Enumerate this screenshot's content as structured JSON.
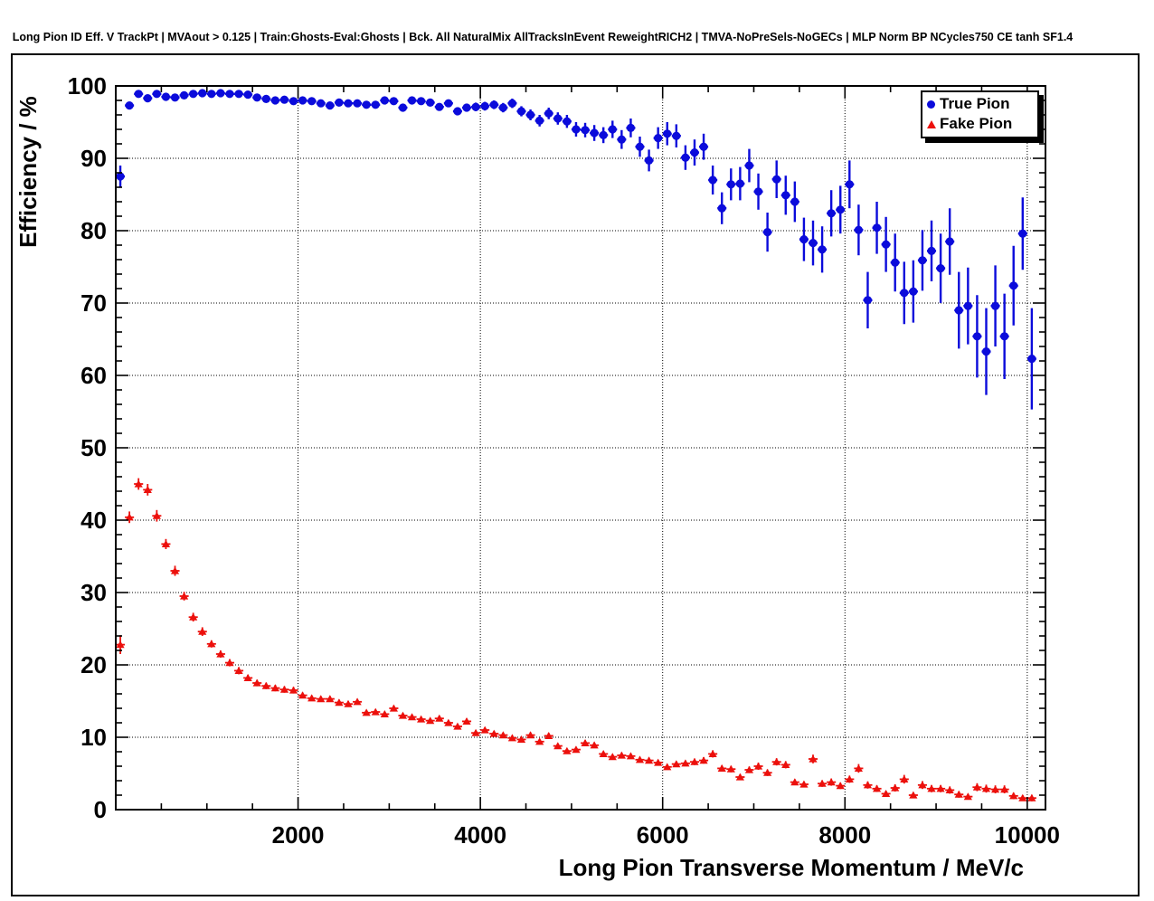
{
  "page_title": "Long Pion ID Eff. V TrackPt | MVAout > 0.125 | Train:Ghosts-Eval:Ghosts | Bck. All NaturalMix AllTracksInEvent ReweightRICH2 | TMVA-NoPreSels-NoGECs | MLP Norm BP NCycles750 CE tanh SF1.4",
  "colors": {
    "true_pion": "#0b0bdb",
    "fake_pion": "#ec100c",
    "axis": "#000000",
    "background": "#ffffff"
  },
  "legend": {
    "position": "top-right",
    "entries": [
      {
        "label": "True Pion",
        "marker": "circle",
        "color": "#0b0bdb"
      },
      {
        "label": "Fake Pion",
        "marker": "triangle",
        "color": "#ec100c"
      }
    ]
  },
  "chart_data": {
    "type": "scatter",
    "title": "Long Pion ID Eff. V TrackPt | MVAout > 0.125 | Train:Ghosts-Eval:Ghosts | Bck. All NaturalMix AllTracksInEvent ReweightRICH2 | TMVA-NoPreSels-NoGECs | MLP Norm BP NCycles750 CE tanh SF1.4",
    "xlabel": "Long Pion Transverse Momentum / MeV/c",
    "ylabel": "Efficiency / %",
    "xlim": [
      0,
      10200
    ],
    "ylim": [
      0,
      100
    ],
    "x_major_ticks": [
      2000,
      4000,
      6000,
      8000,
      10000
    ],
    "x_minor_step": 500,
    "y_major_ticks": [
      0,
      10,
      20,
      30,
      40,
      50,
      60,
      70,
      80,
      90,
      100
    ],
    "y_minor_step": 2,
    "grid": true,
    "bin_half_width": 50,
    "x": [
      50,
      150,
      250,
      350,
      450,
      550,
      650,
      750,
      850,
      950,
      1050,
      1150,
      1250,
      1350,
      1450,
      1550,
      1650,
      1750,
      1850,
      1950,
      2050,
      2150,
      2250,
      2350,
      2450,
      2550,
      2650,
      2750,
      2850,
      2950,
      3050,
      3150,
      3250,
      3350,
      3450,
      3550,
      3650,
      3750,
      3850,
      3950,
      4050,
      4150,
      4250,
      4350,
      4450,
      4550,
      4650,
      4750,
      4850,
      4950,
      5050,
      5150,
      5250,
      5350,
      5450,
      5550,
      5650,
      5750,
      5850,
      5950,
      6050,
      6150,
      6250,
      6350,
      6450,
      6550,
      6650,
      6750,
      6850,
      6950,
      7050,
      7150,
      7250,
      7350,
      7450,
      7550,
      7650,
      7750,
      7850,
      7950,
      8050,
      8150,
      8250,
      8350,
      8450,
      8550,
      8650,
      8750,
      8850,
      8950,
      9050,
      9150,
      9250,
      9350,
      9450,
      9550,
      9650,
      9750,
      9850,
      9950,
      10050
    ],
    "series": [
      {
        "name": "True Pion",
        "marker": "circle",
        "color": "#0b0bdb",
        "y": [
          87.5,
          97.3,
          98.9,
          98.3,
          98.9,
          98.5,
          98.4,
          98.7,
          98.9,
          99.0,
          98.9,
          99.0,
          98.9,
          98.9,
          98.8,
          98.4,
          98.2,
          98.0,
          98.1,
          97.9,
          98.0,
          97.9,
          97.6,
          97.3,
          97.7,
          97.6,
          97.6,
          97.4,
          97.4,
          98.0,
          97.9,
          97.0,
          98.0,
          97.9,
          97.7,
          97.1,
          97.6,
          96.5,
          97.0,
          97.1,
          97.2,
          97.4,
          97.0,
          97.6,
          96.5,
          96.0,
          95.2,
          96.2,
          95.5,
          95.1,
          94.0,
          93.9,
          93.5,
          93.2,
          94.0,
          92.6,
          94.2,
          91.6,
          89.7,
          92.8,
          93.4,
          93.1,
          90.1,
          90.8,
          91.6,
          87.0,
          83.1,
          86.4,
          86.5,
          89.0,
          85.4,
          79.8,
          87.1,
          84.9,
          84.0,
          78.8,
          78.3,
          77.4,
          82.4,
          82.9,
          86.4,
          80.1,
          70.4,
          80.4,
          78.1,
          75.6,
          71.4,
          71.6,
          75.9,
          77.2,
          74.8,
          78.5,
          69.0,
          69.6,
          65.4,
          63.3,
          69.6,
          65.4,
          72.4,
          79.6,
          62.3
        ],
        "yerr": [
          1.5,
          0.5,
          0.3,
          0.3,
          0.25,
          0.25,
          0.25,
          0.25,
          0.25,
          0.25,
          0.25,
          0.25,
          0.25,
          0.25,
          0.25,
          0.3,
          0.3,
          0.3,
          0.3,
          0.3,
          0.3,
          0.3,
          0.3,
          0.35,
          0.35,
          0.35,
          0.35,
          0.35,
          0.35,
          0.35,
          0.4,
          0.45,
          0.45,
          0.45,
          0.5,
          0.5,
          0.5,
          0.55,
          0.55,
          0.6,
          0.6,
          0.6,
          0.65,
          0.65,
          0.7,
          0.75,
          0.8,
          0.8,
          0.85,
          0.9,
          1.0,
          1.0,
          1.1,
          1.1,
          1.2,
          1.3,
          1.3,
          1.4,
          1.5,
          1.5,
          1.6,
          1.6,
          1.7,
          1.8,
          1.8,
          2.0,
          2.2,
          2.2,
          2.3,
          2.3,
          2.5,
          2.7,
          2.6,
          2.7,
          2.8,
          3.0,
          3.1,
          3.2,
          3.2,
          3.3,
          3.3,
          3.5,
          3.9,
          3.6,
          3.8,
          4.0,
          4.3,
          4.3,
          4.2,
          4.2,
          4.8,
          4.6,
          5.3,
          5.3,
          5.7,
          6.0,
          5.6,
          5.9,
          5.5,
          5.0,
          7.0
        ]
      },
      {
        "name": "Fake Pion",
        "marker": "triangle",
        "color": "#ec100c",
        "y": [
          22.8,
          40.4,
          45.0,
          44.2,
          40.6,
          36.7,
          33.0,
          29.5,
          26.6,
          24.6,
          22.9,
          21.5,
          20.3,
          19.2,
          18.2,
          17.5,
          17.1,
          16.8,
          16.6,
          16.5,
          15.8,
          15.4,
          15.3,
          15.3,
          14.8,
          14.6,
          14.9,
          13.4,
          13.5,
          13.2,
          14.0,
          13.0,
          12.8,
          12.5,
          12.3,
          12.6,
          12.0,
          11.5,
          12.2,
          10.6,
          11.0,
          10.5,
          10.3,
          9.9,
          9.7,
          10.3,
          9.4,
          10.2,
          8.8,
          8.1,
          8.3,
          9.2,
          8.9,
          7.7,
          7.3,
          7.5,
          7.4,
          6.9,
          6.8,
          6.5,
          5.9,
          6.3,
          6.4,
          6.6,
          6.8,
          7.7,
          5.7,
          5.6,
          4.5,
          5.5,
          6.0,
          5.1,
          6.6,
          6.2,
          3.8,
          3.5,
          7.0,
          3.6,
          3.8,
          3.3,
          4.2,
          5.7,
          3.4,
          2.9,
          2.2,
          3.0,
          4.2,
          2.0,
          3.4,
          2.9,
          2.9,
          2.7,
          2.1,
          1.8,
          3.1,
          2.9,
          2.8,
          2.8,
          1.9,
          1.6,
          1.6
        ],
        "yerr": [
          1.3,
          0.8,
          0.8,
          0.8,
          0.8,
          0.7,
          0.7,
          0.6,
          0.6,
          0.6,
          0.5,
          0.5,
          0.5,
          0.5,
          0.45,
          0.45,
          0.45,
          0.45,
          0.45,
          0.45,
          0.4,
          0.4,
          0.4,
          0.4,
          0.4,
          0.4,
          0.4,
          0.35,
          0.35,
          0.35,
          0.4,
          0.35,
          0.35,
          0.35,
          0.35,
          0.4,
          0.35,
          0.35,
          0.4,
          0.35,
          0.35,
          0.35,
          0.35,
          0.35,
          0.35,
          0.4,
          0.35,
          0.4,
          0.35,
          0.35,
          0.35,
          0.4,
          0.4,
          0.35,
          0.35,
          0.4,
          0.4,
          0.4,
          0.4,
          0.4,
          0.4,
          0.4,
          0.4,
          0.45,
          0.45,
          0.5,
          0.45,
          0.45,
          0.4,
          0.45,
          0.5,
          0.45,
          0.5,
          0.5,
          0.4,
          0.4,
          0.6,
          0.45,
          0.5,
          0.45,
          0.5,
          0.6,
          0.5,
          0.45,
          0.4,
          0.5,
          0.6,
          0.4,
          0.55,
          0.5,
          0.5,
          0.5,
          0.45,
          0.4,
          0.55,
          0.55,
          0.55,
          0.55,
          0.45,
          0.4,
          0.45
        ]
      }
    ]
  }
}
